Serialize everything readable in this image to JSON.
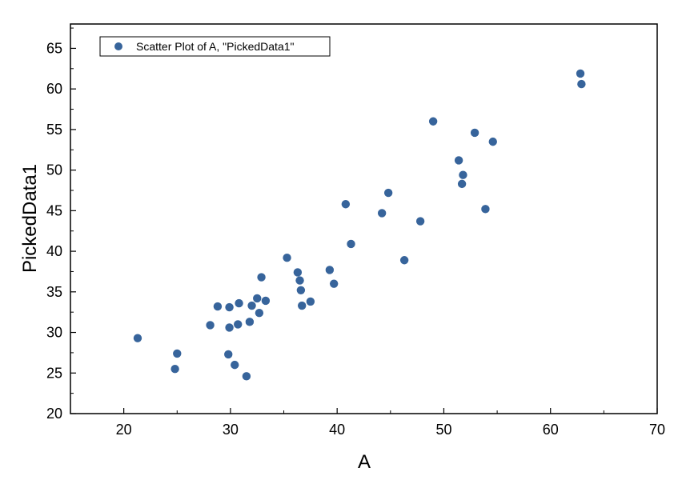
{
  "chart_data": {
    "type": "scatter",
    "title": "",
    "xlabel": "A",
    "ylabel": "PickedData1",
    "xlim": [
      15,
      70
    ],
    "ylim": [
      20,
      68
    ],
    "x_ticks": [
      "20",
      "30",
      "40",
      "50",
      "60",
      "70"
    ],
    "y_ticks": [
      "20",
      "25",
      "30",
      "35",
      "40",
      "45",
      "50",
      "55",
      "60",
      "65"
    ],
    "grid": false,
    "legend_position": "top-left",
    "series": [
      {
        "name": "Scatter Plot of A, \"PickedData1\"",
        "color": "#37649b",
        "points": [
          [
            21.3,
            29.3
          ],
          [
            24.8,
            25.5
          ],
          [
            25.0,
            27.4
          ],
          [
            28.1,
            30.9
          ],
          [
            28.8,
            33.2
          ],
          [
            29.8,
            27.3
          ],
          [
            29.9,
            30.6
          ],
          [
            29.9,
            33.1
          ],
          [
            30.4,
            26.0
          ],
          [
            30.7,
            31.0
          ],
          [
            30.8,
            33.6
          ],
          [
            31.5,
            24.6
          ],
          [
            31.8,
            31.3
          ],
          [
            32.0,
            33.3
          ],
          [
            32.5,
            34.2
          ],
          [
            32.7,
            32.4
          ],
          [
            32.9,
            36.8
          ],
          [
            33.3,
            33.9
          ],
          [
            35.3,
            39.2
          ],
          [
            36.3,
            37.4
          ],
          [
            36.5,
            36.4
          ],
          [
            36.6,
            35.2
          ],
          [
            36.7,
            33.3
          ],
          [
            37.5,
            33.8
          ],
          [
            39.3,
            37.7
          ],
          [
            39.7,
            36.0
          ],
          [
            40.8,
            45.8
          ],
          [
            41.3,
            40.9
          ],
          [
            44.2,
            44.7
          ],
          [
            44.8,
            47.2
          ],
          [
            46.3,
            38.9
          ],
          [
            47.8,
            43.7
          ],
          [
            49.0,
            56.0
          ],
          [
            51.4,
            51.2
          ],
          [
            51.7,
            48.3
          ],
          [
            51.8,
            49.4
          ],
          [
            52.9,
            54.6
          ],
          [
            53.9,
            45.2
          ],
          [
            54.6,
            53.5
          ],
          [
            62.8,
            61.9
          ],
          [
            62.9,
            60.6
          ]
        ]
      }
    ]
  }
}
